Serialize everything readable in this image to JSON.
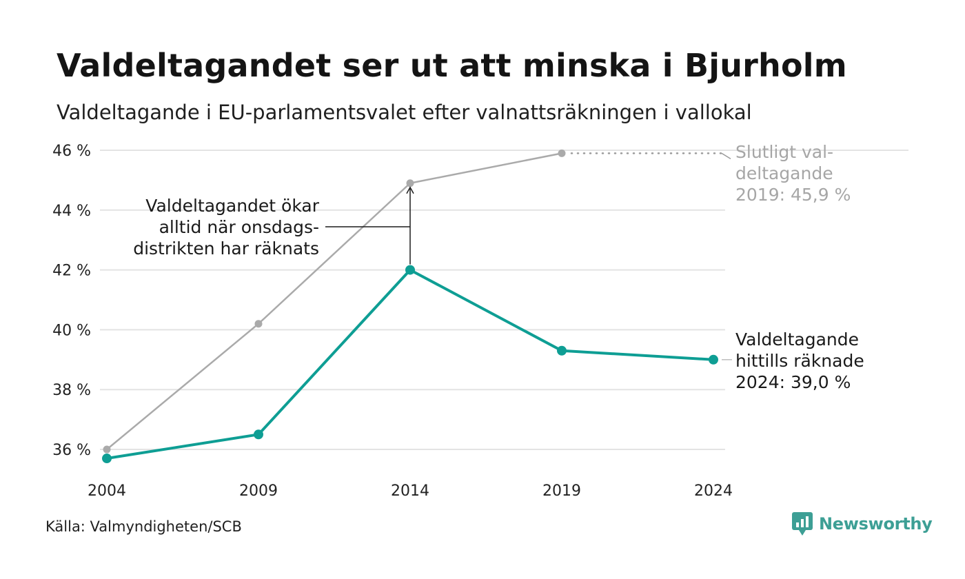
{
  "title": "Valdeltagandet ser ut att minska i Bjurholm",
  "subtitle": "Valdeltagande i EU-parlamentsvalet efter valnattsräkningen i vallokal",
  "source": "Källa: Valmyndigheten/SCB",
  "brand": {
    "name": "Newsworthy",
    "icon": "newsworthy-logo-icon",
    "color": "#3d9f95"
  },
  "chart_data": {
    "type": "line",
    "x": [
      "2004",
      "2009",
      "2014",
      "2019",
      "2024"
    ],
    "ylim": [
      35.5,
      46.2
    ],
    "yticks": [
      36,
      38,
      40,
      42,
      44,
      46
    ],
    "ytick_labels": [
      "36 %",
      "38 %",
      "40 %",
      "42 %",
      "44 %",
      "46 %"
    ],
    "grid": true,
    "series": [
      {
        "key": "final",
        "color": "#aaaaaa",
        "values": [
          36.0,
          40.2,
          44.9,
          45.9,
          null
        ]
      },
      {
        "key": "counted",
        "color": "#0e9e94",
        "values": [
          35.7,
          36.5,
          42.0,
          39.3,
          39.0
        ]
      }
    ],
    "annotations": {
      "arrow": [
        "Valdeltagandet ökar",
        "alltid när onsdags-",
        "distrikten har räknats"
      ],
      "final_label": [
        "Slutligt val-",
        "deltagande",
        "2019: 45,9 %"
      ],
      "counted_label": [
        "Valdeltagande",
        "hittills räknade",
        "2024: 39,0 %"
      ]
    }
  }
}
